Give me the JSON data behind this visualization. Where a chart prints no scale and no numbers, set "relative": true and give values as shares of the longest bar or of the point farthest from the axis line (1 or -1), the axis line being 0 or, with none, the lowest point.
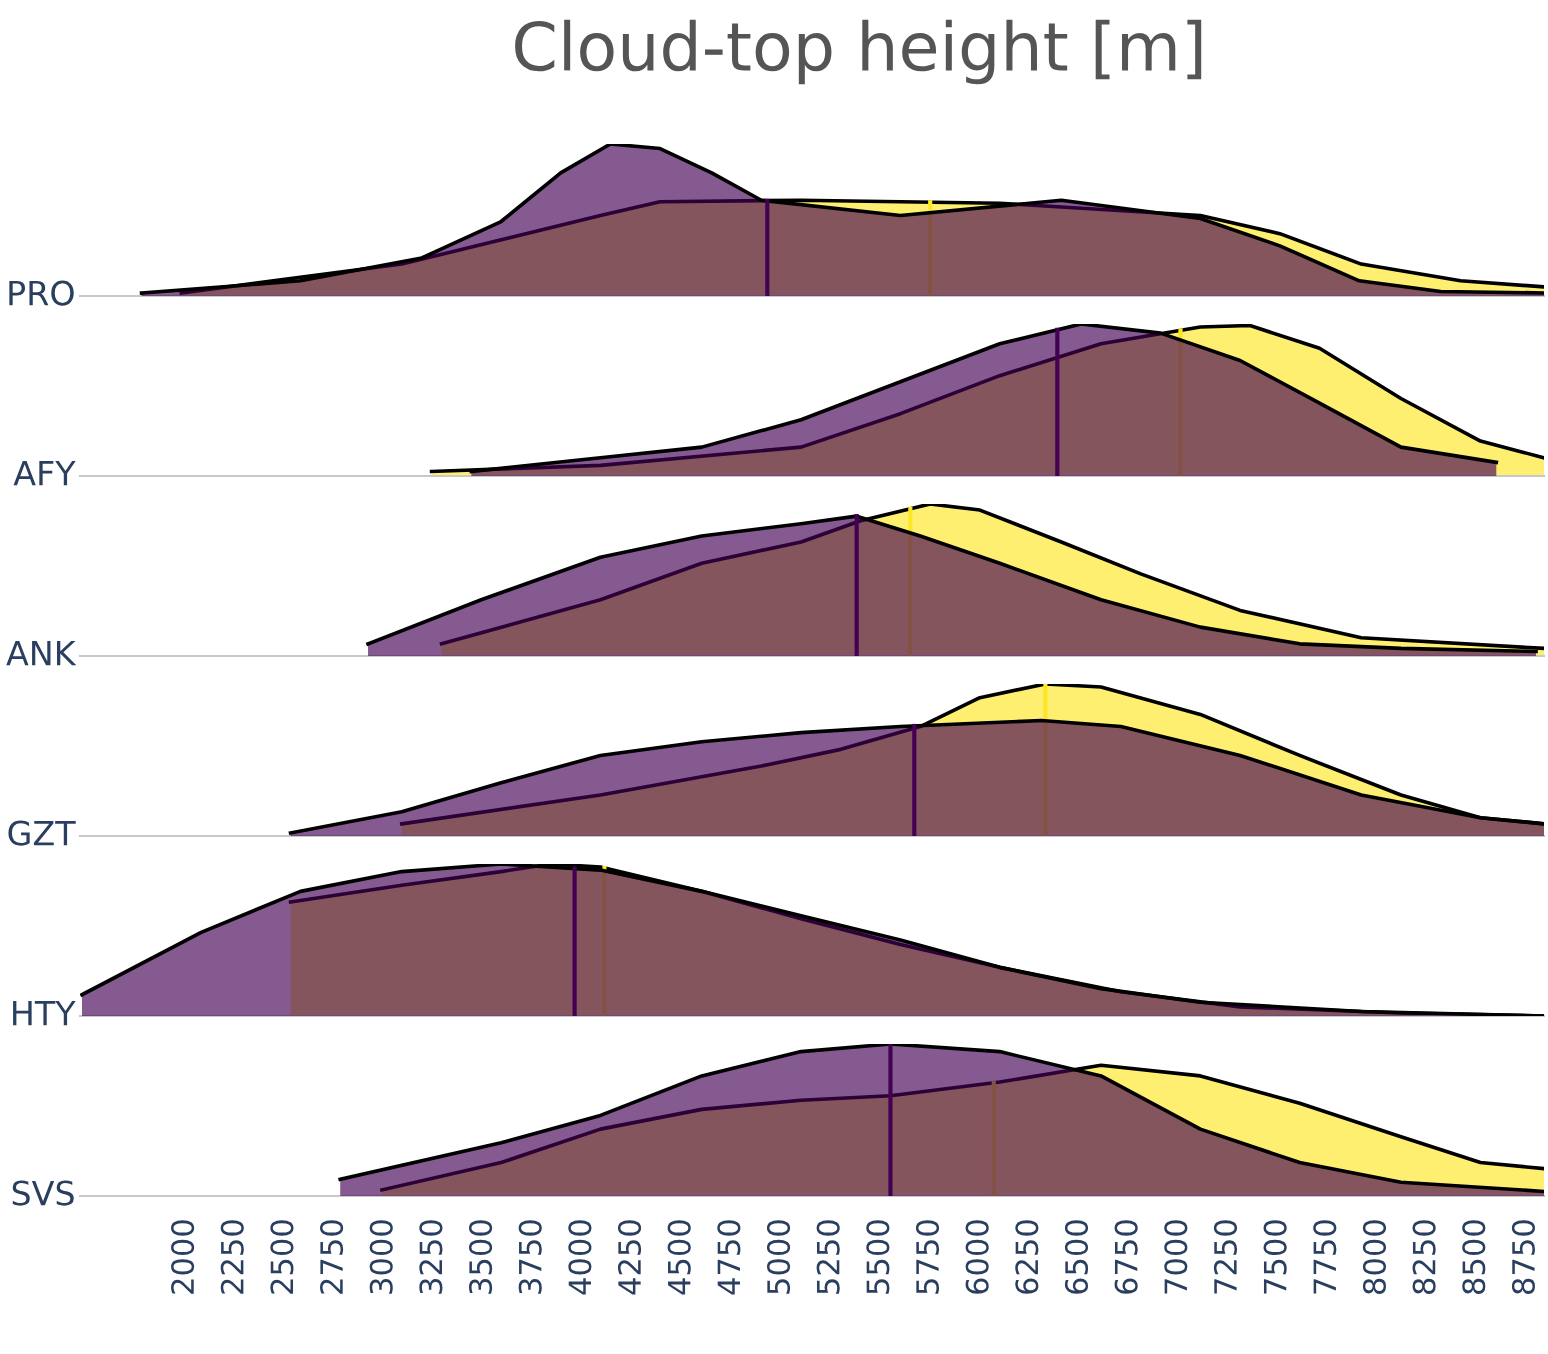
{
  "chart_data": [
    {
      "type": "area",
      "relative": true,
      "title": "Cloud-top height [m]",
      "ylabel": "PRO",
      "xlim": [
        1470,
        8840
      ],
      "tick_labels": false,
      "grid": false,
      "legend": false,
      "series": [
        {
          "color": "#440154",
          "x": [
            1780,
            2580,
            3190,
            3590,
            3890,
            4140,
            4390,
            4650,
            4900,
            5600,
            6410,
            7110,
            7510,
            7910,
            8320,
            8840
          ],
          "values": [
            0.02,
            0.1,
            0.25,
            0.49,
            0.81,
            1,
            0.97,
            0.81,
            0.63,
            0.53,
            0.63,
            0.51,
            0.33,
            0.1,
            0.03,
            0.02
          ]
        },
        {
          "color": "#fde725",
          "x": [
            1980,
            3090,
            4090,
            4390,
            5100,
            6100,
            7110,
            7510,
            7920,
            8420,
            8840
          ],
          "values": [
            0.02,
            0.21,
            0.53,
            0.62,
            0.63,
            0.61,
            0.53,
            0.41,
            0.21,
            0.1,
            0.06
          ]
        }
      ],
      "ref_lines": [
        {
          "axis": "x",
          "value": 4930,
          "color": "#440154"
        },
        {
          "axis": "x",
          "value": 5750,
          "color": "#fde725"
        }
      ]
    },
    {
      "type": "area",
      "relative": true,
      "ylabel": "AFY",
      "xlim": [
        1470,
        8840
      ],
      "tick_labels": false,
      "grid": false,
      "legend": false,
      "series": [
        {
          "color": "#440154",
          "x": [
            3440,
            4090,
            4600,
            5100,
            5600,
            6100,
            6510,
            6910,
            7310,
            7710,
            8120,
            8600
          ],
          "values": [
            0.03,
            0.12,
            0.19,
            0.37,
            0.62,
            0.87,
            1,
            0.94,
            0.76,
            0.48,
            0.19,
            0.09
          ]
        },
        {
          "color": "#fde725",
          "x": [
            3240,
            4090,
            5100,
            5600,
            6100,
            6610,
            7110,
            7360,
            7710,
            8120,
            8520,
            8840
          ],
          "values": [
            0.03,
            0.07,
            0.19,
            0.41,
            0.66,
            0.87,
            0.98,
            0.99,
            0.84,
            0.51,
            0.23,
            0.12
          ]
        }
      ],
      "ref_lines": [
        {
          "axis": "x",
          "value": 6390,
          "color": "#440154"
        },
        {
          "axis": "x",
          "value": 7010,
          "color": "#fde725"
        }
      ]
    },
    {
      "type": "area",
      "relative": true,
      "ylabel": "ANK",
      "xlim": [
        1470,
        8840
      ],
      "tick_labels": false,
      "grid": false,
      "legend": false,
      "series": [
        {
          "color": "#440154",
          "x": [
            2920,
            3490,
            4090,
            4600,
            5100,
            5380,
            5700,
            6100,
            6610,
            7110,
            7610,
            8120,
            8800
          ],
          "values": [
            0.08,
            0.37,
            0.65,
            0.79,
            0.87,
            0.92,
            0.79,
            0.61,
            0.37,
            0.19,
            0.08,
            0.05,
            0.03
          ]
        },
        {
          "color": "#fde725",
          "x": [
            3290,
            4090,
            4600,
            5100,
            5400,
            5750,
            6000,
            6410,
            6810,
            7310,
            7920,
            8840
          ],
          "values": [
            0.08,
            0.37,
            0.61,
            0.75,
            0.89,
            1,
            0.96,
            0.75,
            0.54,
            0.3,
            0.12,
            0.05
          ]
        }
      ],
      "ref_lines": [
        {
          "axis": "x",
          "value": 5380,
          "color": "#440154"
        },
        {
          "axis": "x",
          "value": 5650,
          "color": "#fde725"
        }
      ]
    },
    {
      "type": "area",
      "relative": true,
      "ylabel": "GZT",
      "xlim": [
        1470,
        8840
      ],
      "tick_labels": false,
      "grid": false,
      "legend": false,
      "series": [
        {
          "color": "#440154",
          "x": [
            2530,
            3090,
            3590,
            4090,
            4600,
            5100,
            5600,
            6310,
            6710,
            7310,
            7920,
            8520,
            8840
          ],
          "values": [
            0.02,
            0.16,
            0.35,
            0.53,
            0.62,
            0.68,
            0.72,
            0.76,
            0.72,
            0.53,
            0.27,
            0.12,
            0.08
          ]
        },
        {
          "color": "#fde725",
          "x": [
            3090,
            4090,
            4900,
            5300,
            5700,
            6000,
            6330,
            6610,
            7110,
            7610,
            8120,
            8520,
            8840
          ],
          "values": [
            0.08,
            0.27,
            0.46,
            0.57,
            0.72,
            0.91,
            1,
            0.98,
            0.8,
            0.53,
            0.27,
            0.12,
            0.08
          ]
        }
      ],
      "ref_lines": [
        {
          "axis": "x",
          "value": 5670,
          "color": "#440154"
        },
        {
          "axis": "x",
          "value": 6330,
          "color": "#fde725"
        }
      ]
    },
    {
      "type": "area",
      "relative": true,
      "ylabel": "HTY",
      "xlim": [
        1470,
        8840
      ],
      "tick_labels": false,
      "grid": false,
      "legend": false,
      "series": [
        {
          "color": "#440154",
          "x": [
            1480,
            2080,
            2580,
            3090,
            3590,
            4090,
            4600,
            5100,
            5600,
            6100,
            6610,
            7110,
            7920,
            8840
          ],
          "values": [
            0.14,
            0.55,
            0.82,
            0.95,
            1,
            0.96,
            0.82,
            0.66,
            0.5,
            0.32,
            0.18,
            0.09,
            0.03,
            0
          ]
        },
        {
          "color": "#fde725",
          "x": [
            2530,
            3090,
            3590,
            3840,
            4090,
            4600,
            5100,
            5600,
            6100,
            6710,
            7310,
            8120,
            8840
          ],
          "values": [
            0.75,
            0.86,
            0.95,
            1,
            0.98,
            0.82,
            0.64,
            0.47,
            0.32,
            0.16,
            0.06,
            0.02,
            0
          ]
        }
      ],
      "ref_lines": [
        {
          "axis": "x",
          "value": 3960,
          "color": "#440154"
        },
        {
          "axis": "x",
          "value": 4110,
          "color": "#fde725"
        }
      ]
    },
    {
      "type": "area",
      "relative": true,
      "ylabel": "SVS",
      "xlim": [
        1470,
        8840
      ],
      "xticks": [
        2000,
        2250,
        2500,
        2750,
        3000,
        3250,
        3500,
        3750,
        4000,
        4250,
        4500,
        4750,
        5000,
        5250,
        5500,
        5750,
        6000,
        6250,
        6500,
        6750,
        7000,
        7250,
        7500,
        7750,
        8000,
        8250,
        8500,
        8750
      ],
      "tick_labels": "x",
      "grid": false,
      "legend": false,
      "series": [
        {
          "color": "#440154",
          "x": [
            2780,
            3590,
            4090,
            4600,
            5100,
            5550,
            6100,
            6610,
            7110,
            7610,
            8120,
            8840
          ],
          "values": [
            0.11,
            0.35,
            0.53,
            0.79,
            0.95,
            1,
            0.95,
            0.79,
            0.44,
            0.22,
            0.09,
            0.03
          ]
        },
        {
          "color": "#fde725",
          "x": [
            2990,
            3590,
            4090,
            4600,
            5100,
            5550,
            6100,
            6610,
            7110,
            7610,
            8120,
            8520,
            8840
          ],
          "values": [
            0.04,
            0.22,
            0.44,
            0.57,
            0.63,
            0.66,
            0.75,
            0.86,
            0.79,
            0.61,
            0.39,
            0.22,
            0.18
          ]
        }
      ],
      "ref_lines": [
        {
          "axis": "x",
          "value": 5550,
          "color": "#440154"
        },
        {
          "axis": "x",
          "value": 6070,
          "color": "#fde725"
        }
      ]
    }
  ]
}
